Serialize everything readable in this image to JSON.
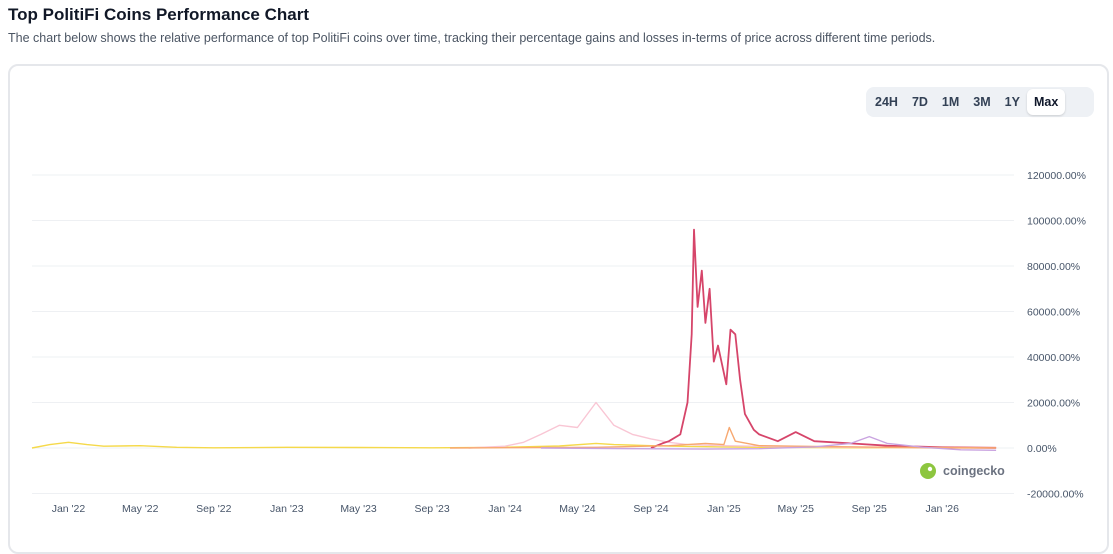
{
  "header": {
    "title": "Top PolitiFi Coins Performance Chart",
    "subtitle": "The chart below shows the relative performance of top PolitiFi coins over time, tracking their percentage gains and losses in-terms of price across different time periods."
  },
  "range_buttons": [
    {
      "label": "24H",
      "active": false
    },
    {
      "label": "7D",
      "active": false
    },
    {
      "label": "1M",
      "active": false
    },
    {
      "label": "3M",
      "active": false
    },
    {
      "label": "1Y",
      "active": false
    },
    {
      "label": "Max",
      "active": true
    }
  ],
  "watermark": "coingecko",
  "colors": {
    "red": "#d6456a",
    "pink": "#f9c6d4",
    "yellow": "#f5d94a",
    "orange": "#f7a870",
    "purple": "#c9a3e0",
    "grid": "#eef0f3",
    "accent_green": "#8dc63f"
  },
  "chart_data": {
    "type": "line",
    "y_tick_labels": [
      "120000.00%",
      "100000.00%",
      "80000.00%",
      "60000.00%",
      "40000.00%",
      "20000.00%",
      "0.00%",
      "-20000.00%"
    ],
    "y_tick_values": [
      120000,
      100000,
      80000,
      60000,
      40000,
      20000,
      0,
      -20000
    ],
    "x_tick_labels": [
      "Jan '22",
      "May '22",
      "Sep '22",
      "Jan '23",
      "May '23",
      "Sep '23",
      "Jan '24",
      "May '24",
      "Sep '24",
      "Jan '25",
      "May '25",
      "Sep '25",
      "Jan '26"
    ],
    "x_tick_values": [
      "2022-01",
      "2022-05",
      "2022-09",
      "2023-01",
      "2023-05",
      "2023-09",
      "2024-01",
      "2024-05",
      "2024-09",
      "2025-01",
      "2025-05",
      "2025-09",
      "2026-01"
    ],
    "xlim": [
      "2021-11",
      "2026-05"
    ],
    "ylim": [
      -21000,
      125000
    ],
    "series": [
      {
        "color": "#f5d94a",
        "points": [
          [
            "2021-11",
            0
          ],
          [
            "2021-12",
            1500
          ],
          [
            "2022-01",
            2500
          ],
          [
            "2022-02",
            1500
          ],
          [
            "2022-03",
            800
          ],
          [
            "2022-05",
            1000
          ],
          [
            "2022-07",
            300
          ],
          [
            "2022-09",
            100
          ],
          [
            "2023-01",
            300
          ],
          [
            "2023-05",
            200
          ],
          [
            "2023-09",
            100
          ],
          [
            "2024-01",
            300
          ],
          [
            "2024-04",
            900
          ],
          [
            "2024-06",
            2000
          ],
          [
            "2024-07",
            1500
          ],
          [
            "2024-09",
            1000
          ],
          [
            "2024-11",
            700
          ],
          [
            "2025-01",
            500
          ],
          [
            "2025-03",
            300
          ],
          [
            "2025-06",
            200
          ],
          [
            "2025-09",
            100
          ],
          [
            "2025-12",
            50
          ],
          [
            "2026-04",
            50
          ]
        ]
      },
      {
        "color": "#f9c6d4",
        "points": [
          [
            "2023-11",
            0
          ],
          [
            "2024-01",
            800
          ],
          [
            "2024-02",
            2500
          ],
          [
            "2024-03",
            6000
          ],
          [
            "2024-04",
            10000
          ],
          [
            "2024-05",
            9000
          ],
          [
            "2024-06",
            20000
          ],
          [
            "2024-07",
            10000
          ],
          [
            "2024-08",
            6000
          ],
          [
            "2024-09",
            4000
          ],
          [
            "2024-10",
            2500
          ],
          [
            "2024-11",
            1500
          ],
          [
            "2025-01",
            1000
          ],
          [
            "2025-04",
            600
          ],
          [
            "2025-08",
            300
          ],
          [
            "2025-12",
            100
          ],
          [
            "2026-04",
            50
          ]
        ]
      },
      {
        "color": "#d6456a",
        "points": [
          [
            "2024-09",
            0
          ],
          [
            "2024-09-20",
            2000
          ],
          [
            "2024-10",
            3000
          ],
          [
            "2024-10-20",
            6000
          ],
          [
            "2024-11",
            20000
          ],
          [
            "2024-11-08",
            50000
          ],
          [
            "2024-11-12",
            96000
          ],
          [
            "2024-11-18",
            62000
          ],
          [
            "2024-11-25",
            78000
          ],
          [
            "2024-12",
            55000
          ],
          [
            "2024-12-08",
            70000
          ],
          [
            "2024-12-15",
            38000
          ],
          [
            "2024-12-22",
            45000
          ],
          [
            "2025-01-05",
            28000
          ],
          [
            "2025-01-12",
            52000
          ],
          [
            "2025-01-20",
            50000
          ],
          [
            "2025-01-28",
            30000
          ],
          [
            "2025-02-05",
            15000
          ],
          [
            "2025-02-20",
            8000
          ],
          [
            "2025-03",
            6000
          ],
          [
            "2025-04",
            3000
          ],
          [
            "2025-05",
            7000
          ],
          [
            "2025-06",
            3000
          ],
          [
            "2025-08",
            2000
          ],
          [
            "2025-10",
            1000
          ],
          [
            "2026-01",
            300
          ],
          [
            "2026-04",
            100
          ]
        ]
      },
      {
        "color": "#f7a870",
        "points": [
          [
            "2023-10",
            0
          ],
          [
            "2024-06",
            300
          ],
          [
            "2024-10",
            1000
          ],
          [
            "2024-12",
            2000
          ],
          [
            "2025-01",
            1500
          ],
          [
            "2025-01-10",
            9000
          ],
          [
            "2025-01-20",
            3000
          ],
          [
            "2025-03",
            1000
          ],
          [
            "2025-06",
            700
          ],
          [
            "2025-09",
            400
          ],
          [
            "2025-12",
            200
          ],
          [
            "2026-04",
            100
          ]
        ]
      },
      {
        "color": "#c9a3e0",
        "points": [
          [
            "2024-03",
            0
          ],
          [
            "2024-08",
            -300
          ],
          [
            "2024-12",
            -500
          ],
          [
            "2025-03",
            -300
          ],
          [
            "2025-06",
            500
          ],
          [
            "2025-08",
            2000
          ],
          [
            "2025-09",
            5000
          ],
          [
            "2025-10",
            2000
          ],
          [
            "2025-12",
            300
          ],
          [
            "2026-02",
            -800
          ],
          [
            "2026-04",
            -1000
          ]
        ]
      }
    ]
  }
}
